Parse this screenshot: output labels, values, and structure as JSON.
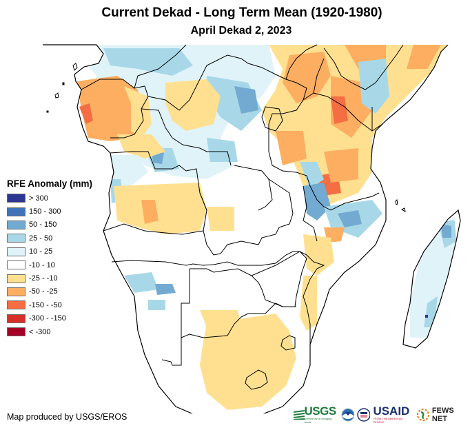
{
  "header": {
    "title": "Current Dekad - Long Term Mean (1920-1980)",
    "subtitle": "April Dekad 2, 2023"
  },
  "legend": {
    "title": "RFE Anomaly (mm)",
    "items": [
      {
        "label": "> 300",
        "color": "#2d3593"
      },
      {
        "label": "150 - 300",
        "color": "#3f72b8"
      },
      {
        "label": "50 - 150",
        "color": "#72aad2"
      },
      {
        "label": "25 - 50",
        "color": "#a8d8e8"
      },
      {
        "label": "10 - 25",
        "color": "#e0f3f8"
      },
      {
        "label": "-10 - 10",
        "color": "#ffffff"
      },
      {
        "label": "-25 - -10",
        "color": "#fee090"
      },
      {
        "label": "-50 - -25",
        "color": "#fdae61"
      },
      {
        "label": "-150 - -50",
        "color": "#f46d43"
      },
      {
        "label": "-300 - -150",
        "color": "#d73027"
      },
      {
        "label": "< -300",
        "color": "#a50026"
      }
    ]
  },
  "map": {
    "region": "Central, East and Southern Africa",
    "anomaly_classes": {
      "strong_wet": "#3f72b8",
      "wet": "#72aad2",
      "moderate_wet": "#a8d8e8",
      "slight_wet": "#e0f3f8",
      "slight_dry": "#fee090",
      "dry": "#fdae61",
      "very_dry": "#f46d43",
      "extreme_wet": "#2d3593"
    },
    "border_color": "#000000",
    "land_color": "#ffffff"
  },
  "footer": {
    "credit": "Map produced by USGS/EROS",
    "logos": {
      "usgs": "USGS",
      "usgs_tagline": "science for a changing world",
      "usaid": "USAID",
      "usaid_tagline": "FROM THE AMERICAN PEOPLE",
      "fews": "FEWS NET"
    }
  }
}
